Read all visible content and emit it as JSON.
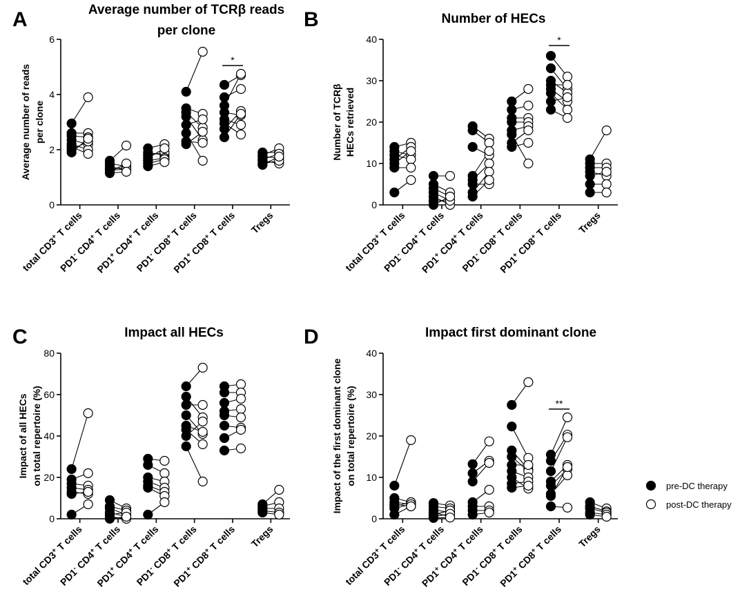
{
  "legend": {
    "pre": "pre-DC therapy",
    "post": "post-DC therapy"
  },
  "chart_data": [
    {
      "panel": "A",
      "type": "scatter",
      "title_line1": "Average number of TCRβ reads",
      "title_line2": "per clone",
      "ylabel_line1": "Average number of reads",
      "ylabel_line2": "per clone",
      "ylim": [
        0,
        6
      ],
      "yticks": [
        "0",
        "2",
        "4",
        "6"
      ],
      "categories": [
        {
          "pre": "total CD3",
          "sup": "+",
          "post": " T cells"
        },
        {
          "pre": "PD1",
          "sup": "-",
          "mid": " CD4",
          "sup2": "+",
          "post": " T cells"
        },
        {
          "pre": "PD1",
          "sup": "+",
          "mid": " CD4",
          "sup2": "+",
          "post": " T cells"
        },
        {
          "pre": "PD1",
          "sup": "-",
          "mid": " CD8",
          "sup2": "+",
          "post": " T cells"
        },
        {
          "pre": "PD1",
          "sup": "+",
          "mid": " CD8",
          "sup2": "+",
          "post": " T cells"
        },
        {
          "pre": "Tregs"
        }
      ],
      "series": [
        [
          [
            2.95,
            3.9
          ],
          [
            2.6,
            2.6
          ],
          [
            2.5,
            2.45
          ],
          [
            2.35,
            2.2
          ],
          [
            2.2,
            2.0
          ],
          [
            2.1,
            1.85
          ],
          [
            2.0,
            2.3
          ],
          [
            1.9,
            2.4
          ]
        ],
        [
          [
            1.6,
            2.15
          ],
          [
            1.5,
            1.4
          ],
          [
            1.4,
            1.25
          ],
          [
            1.3,
            1.35
          ],
          [
            1.25,
            1.3
          ],
          [
            1.2,
            1.5
          ],
          [
            1.15,
            1.2
          ]
        ],
        [
          [
            2.05,
            2.2
          ],
          [
            1.9,
            1.8
          ],
          [
            1.8,
            1.9
          ],
          [
            1.7,
            2.05
          ],
          [
            1.6,
            1.7
          ],
          [
            1.5,
            1.65
          ],
          [
            1.4,
            1.55
          ]
        ],
        [
          [
            4.1,
            5.55
          ],
          [
            3.5,
            3.3
          ],
          [
            3.35,
            2.8
          ],
          [
            3.2,
            2.35
          ],
          [
            2.9,
            3.1
          ],
          [
            2.6,
            1.6
          ],
          [
            2.3,
            2.25
          ],
          [
            2.2,
            2.65
          ]
        ],
        [
          [
            4.35,
            4.7
          ],
          [
            3.9,
            4.2
          ],
          [
            3.6,
            4.75
          ],
          [
            3.35,
            3.25
          ],
          [
            3.1,
            2.9
          ],
          [
            2.95,
            2.55
          ],
          [
            2.75,
            3.4
          ],
          [
            2.45,
            3.3
          ]
        ],
        [
          [
            1.9,
            1.9
          ],
          [
            1.8,
            2.05
          ],
          [
            1.75,
            1.7
          ],
          [
            1.65,
            1.85
          ],
          [
            1.6,
            1.5
          ],
          [
            1.5,
            1.6
          ],
          [
            1.45,
            1.75
          ]
        ]
      ],
      "significance": [
        {
          "category": 4,
          "label": "*",
          "y": 5.05
        }
      ]
    },
    {
      "panel": "B",
      "type": "scatter",
      "title_line1": "Number of HECs",
      "title_line2": "",
      "ylabel_line1": "Number of TCRβ",
      "ylabel_line2": "HECs retrieved",
      "ylim": [
        0,
        40
      ],
      "yticks": [
        "0",
        "10",
        "20",
        "30",
        "40"
      ],
      "categories": [
        {
          "pre": "total CD3",
          "sup": "+",
          "post": " T cells"
        },
        {
          "pre": "PD1",
          "sup": "-",
          "mid": " CD4",
          "sup2": "+",
          "post": " T cells"
        },
        {
          "pre": "PD1",
          "sup": "+",
          "mid": " CD4",
          "sup2": "+",
          "post": " T cells"
        },
        {
          "pre": "PD1",
          "sup": "-",
          "mid": " CD8",
          "sup2": "+",
          "post": " T cells"
        },
        {
          "pre": "PD1",
          "sup": "+",
          "mid": " CD8",
          "sup2": "+",
          "post": " T cells"
        },
        {
          "pre": "Tregs"
        }
      ],
      "series": [
        [
          [
            14,
            15
          ],
          [
            13,
            12
          ],
          [
            12,
            11
          ],
          [
            11,
            14
          ],
          [
            10,
            13
          ],
          [
            9,
            9
          ],
          [
            3,
            6
          ]
        ],
        [
          [
            7,
            7
          ],
          [
            5,
            3
          ],
          [
            4,
            2
          ],
          [
            3,
            1
          ],
          [
            2,
            0
          ],
          [
            1,
            1
          ],
          [
            0,
            2
          ]
        ],
        [
          [
            19,
            16
          ],
          [
            18,
            15
          ],
          [
            14,
            12
          ],
          [
            7,
            13
          ],
          [
            6,
            10
          ],
          [
            5,
            5
          ],
          [
            3,
            8
          ],
          [
            2,
            6
          ]
        ],
        [
          [
            25,
            28
          ],
          [
            23,
            24
          ],
          [
            21,
            21
          ],
          [
            20,
            20
          ],
          [
            18,
            19
          ],
          [
            17,
            10
          ],
          [
            15,
            18
          ],
          [
            14,
            15
          ]
        ],
        [
          [
            36,
            31
          ],
          [
            33,
            28
          ],
          [
            30,
            27
          ],
          [
            29,
            29
          ],
          [
            28,
            25
          ],
          [
            27,
            23
          ],
          [
            25,
            26
          ],
          [
            23,
            21
          ]
        ],
        [
          [
            11,
            18
          ],
          [
            10,
            10
          ],
          [
            9,
            9
          ],
          [
            8,
            7
          ],
          [
            7,
            8
          ],
          [
            5,
            5
          ],
          [
            3,
            3
          ]
        ]
      ],
      "significance": [
        {
          "category": 4,
          "label": "*",
          "y": 38.5
        }
      ]
    },
    {
      "panel": "C",
      "type": "scatter",
      "title_line1": "Impact all HECs",
      "title_line2": "",
      "ylabel_line1": "Impact of all HECs",
      "ylabel_line2": "on total repertoire (%)",
      "ylim": [
        0,
        80
      ],
      "yticks": [
        "0",
        "20",
        "40",
        "60",
        "80"
      ],
      "categories": [
        {
          "pre": "total CD3",
          "sup": "+",
          "post": " T cells"
        },
        {
          "pre": "PD1",
          "sup": "-",
          "mid": " CD4",
          "sup2": "+",
          "post": " T cells"
        },
        {
          "pre": "PD1",
          "sup": "+",
          "mid": " CD4",
          "sup2": "+",
          "post": " T cells"
        },
        {
          "pre": "PD1",
          "sup": "-",
          "mid": " CD8",
          "sup2": "+",
          "post": " T cells"
        },
        {
          "pre": "PD1",
          "sup": "+",
          "mid": " CD8",
          "sup2": "+",
          "post": " T cells"
        },
        {
          "pre": "Tregs"
        }
      ],
      "series": [
        [
          [
            24,
            51
          ],
          [
            19,
            22
          ],
          [
            17,
            16
          ],
          [
            15,
            14
          ],
          [
            13,
            12
          ],
          [
            12,
            13
          ],
          [
            2,
            7
          ]
        ],
        [
          [
            9,
            5
          ],
          [
            6,
            4
          ],
          [
            5,
            2
          ],
          [
            3,
            1
          ],
          [
            2,
            3
          ],
          [
            1,
            0
          ],
          [
            0,
            1
          ]
        ],
        [
          [
            29,
            28
          ],
          [
            26,
            22
          ],
          [
            20,
            18
          ],
          [
            18,
            15
          ],
          [
            16,
            13
          ],
          [
            15,
            11
          ],
          [
            2,
            8
          ]
        ],
        [
          [
            64,
            73
          ],
          [
            59,
            49
          ],
          [
            55,
            55
          ],
          [
            50,
            41
          ],
          [
            45,
            42
          ],
          [
            43,
            36
          ],
          [
            40,
            47
          ],
          [
            35,
            18
          ]
        ],
        [
          [
            64,
            65
          ],
          [
            61,
            61
          ],
          [
            56,
            58
          ],
          [
            52,
            53
          ],
          [
            50,
            49
          ],
          [
            45,
            44
          ],
          [
            39,
            43
          ],
          [
            33,
            34
          ]
        ],
        [
          [
            7,
            14
          ],
          [
            6,
            8
          ],
          [
            5,
            5
          ],
          [
            4,
            3
          ],
          [
            3,
            2
          ]
        ]
      ],
      "significance": []
    },
    {
      "panel": "D",
      "type": "scatter",
      "title_line1": "Impact first dominant clone",
      "title_line2": "",
      "ylabel_line1": "Impact of the first dominant clone",
      "ylabel_line2": "on total repertoire (%)",
      "ylim": [
        0,
        40
      ],
      "yticks": [
        "0",
        "10",
        "20",
        "30",
        "40"
      ],
      "categories": [
        {
          "pre": "total CD3",
          "sup": "+",
          "post": " T cells"
        },
        {
          "pre": "PD1",
          "sup": "-",
          "mid": " CD4",
          "sup2": "+",
          "post": " T cells"
        },
        {
          "pre": "PD1",
          "sup": "+",
          "mid": " CD4",
          "sup2": "+",
          "post": " T cells"
        },
        {
          "pre": "PD1",
          "sup": "-",
          "mid": " CD8",
          "sup2": "+",
          "post": " T cells"
        },
        {
          "pre": "PD1",
          "sup": "+",
          "mid": " CD8",
          "sup2": "+",
          "post": " T cells"
        },
        {
          "pre": "Tregs"
        }
      ],
      "series": [
        [
          [
            8,
            19
          ],
          [
            5,
            4
          ],
          [
            4,
            3.5
          ],
          [
            3.5,
            3
          ],
          [
            3,
            4
          ],
          [
            2.5,
            3.5
          ],
          [
            1,
            3
          ]
        ],
        [
          [
            3.8,
            3.2
          ],
          [
            3,
            2.5
          ],
          [
            2.2,
            1.5
          ],
          [
            1.5,
            0.5
          ],
          [
            1,
            2
          ],
          [
            0.5,
            1.2
          ],
          [
            0.2,
            0.3
          ]
        ],
        [
          [
            13.2,
            18.7
          ],
          [
            11,
            14
          ],
          [
            9,
            13.5
          ],
          [
            4,
            7
          ],
          [
            3,
            3
          ],
          [
            2,
            2
          ],
          [
            1,
            1.5
          ]
        ],
        [
          [
            27.5,
            33
          ],
          [
            22.3,
            14.7
          ],
          [
            16.5,
            12
          ],
          [
            15,
            11.5
          ],
          [
            13,
            13
          ],
          [
            11.5,
            10
          ],
          [
            10,
            7.3
          ],
          [
            8.5,
            9
          ],
          [
            7.5,
            8
          ]
        ],
        [
          [
            15.5,
            24.5
          ],
          [
            14,
            20.3
          ],
          [
            11.5,
            19.7
          ],
          [
            9,
            13
          ],
          [
            8,
            12
          ],
          [
            6,
            10.5
          ],
          [
            5.5,
            12.5
          ],
          [
            3,
            2.7
          ]
        ],
        [
          [
            4,
            2.5
          ],
          [
            3,
            1.8
          ],
          [
            2.5,
            1.5
          ],
          [
            1.5,
            1
          ],
          [
            1,
            0.5
          ]
        ]
      ],
      "significance": [
        {
          "category": 4,
          "label": "**",
          "y": 26.5
        }
      ]
    }
  ]
}
